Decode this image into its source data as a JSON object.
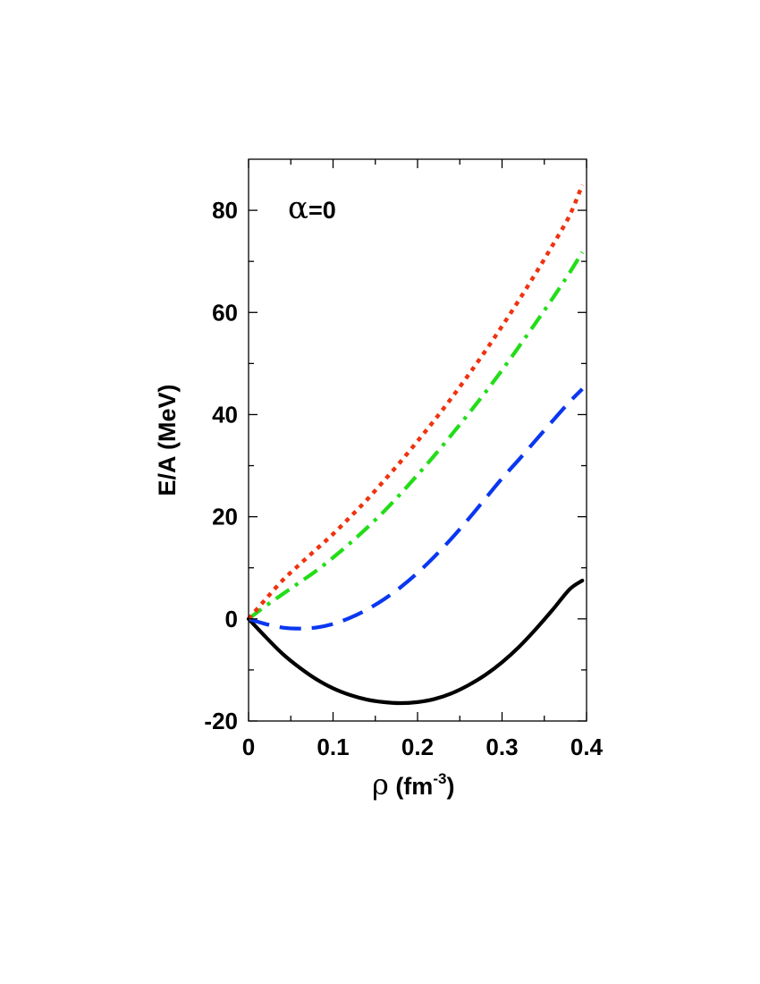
{
  "chart_data": {
    "type": "line",
    "annotation": {
      "symbol": "α",
      "text": "=0"
    },
    "xlabel": {
      "symbol": "ρ",
      "text": " (fm",
      "sup": "-3",
      "close": ")"
    },
    "ylabel": "E/A (MeV)",
    "xlim": [
      0,
      0.4
    ],
    "ylim": [
      -20,
      90
    ],
    "x_ticks": [
      {
        "value": 0,
        "label": "0"
      },
      {
        "value": 0.1,
        "label": "0.1"
      },
      {
        "value": 0.2,
        "label": "0.2"
      },
      {
        "value": 0.3,
        "label": "0.3"
      },
      {
        "value": 0.4,
        "label": "0.4"
      }
    ],
    "y_ticks": [
      {
        "value": -20,
        "label": "-20"
      },
      {
        "value": 0,
        "label": "0"
      },
      {
        "value": 20,
        "label": "20"
      },
      {
        "value": 40,
        "label": "40"
      },
      {
        "value": 60,
        "label": "60"
      },
      {
        "value": 80,
        "label": "80"
      }
    ],
    "grid": false,
    "series": [
      {
        "style": "solid",
        "color": "#000000",
        "x": [
          0,
          0.02,
          0.04,
          0.06,
          0.08,
          0.1,
          0.12,
          0.14,
          0.16,
          0.18,
          0.2,
          0.22,
          0.24,
          0.26,
          0.28,
          0.3,
          0.32,
          0.34,
          0.36,
          0.38,
          0.395
        ],
        "y": [
          0,
          -3.5,
          -6.8,
          -9.5,
          -11.8,
          -13.6,
          -14.9,
          -15.8,
          -16.3,
          -16.5,
          -16.3,
          -15.7,
          -14.6,
          -13.0,
          -11.0,
          -8.5,
          -5.5,
          -2.0,
          1.8,
          5.8,
          7.5
        ]
      },
      {
        "style": "dashed",
        "color": "#0a37f0",
        "x": [
          0,
          0.02,
          0.04,
          0.06,
          0.08,
          0.1,
          0.12,
          0.14,
          0.16,
          0.18,
          0.2,
          0.22,
          0.24,
          0.26,
          0.28,
          0.3,
          0.32,
          0.34,
          0.36,
          0.38,
          0.395
        ],
        "y": [
          0,
          -1.0,
          -1.7,
          -1.9,
          -1.7,
          -1.0,
          0.2,
          1.8,
          3.8,
          6.2,
          9.0,
          12.2,
          15.7,
          19.5,
          23.5,
          27.5,
          31.2,
          35.0,
          38.8,
          42.5,
          45.0
        ]
      },
      {
        "style": "dashdot",
        "color": "#22dd18",
        "x": [
          0,
          0.02,
          0.04,
          0.06,
          0.08,
          0.1,
          0.12,
          0.14,
          0.16,
          0.18,
          0.2,
          0.22,
          0.24,
          0.26,
          0.28,
          0.3,
          0.32,
          0.34,
          0.36,
          0.38,
          0.395
        ],
        "y": [
          0,
          2.5,
          4.8,
          7.1,
          9.4,
          12.0,
          14.8,
          17.8,
          21.0,
          24.5,
          28.2,
          32.0,
          36.0,
          40.1,
          44.3,
          48.7,
          53.3,
          58.0,
          62.8,
          67.8,
          71.8
        ]
      },
      {
        "style": "dotted",
        "color": "#f0320f",
        "x": [
          0,
          0.02,
          0.04,
          0.06,
          0.08,
          0.1,
          0.12,
          0.14,
          0.16,
          0.18,
          0.2,
          0.22,
          0.24,
          0.26,
          0.28,
          0.3,
          0.32,
          0.34,
          0.36,
          0.38,
          0.395
        ],
        "y": [
          0,
          3.8,
          7.5,
          10.6,
          13.6,
          16.6,
          19.9,
          23.3,
          27.0,
          30.8,
          34.8,
          38.9,
          43.2,
          47.7,
          52.4,
          57.3,
          62.4,
          67.7,
          73.2,
          79.0,
          85.0
        ]
      }
    ]
  }
}
